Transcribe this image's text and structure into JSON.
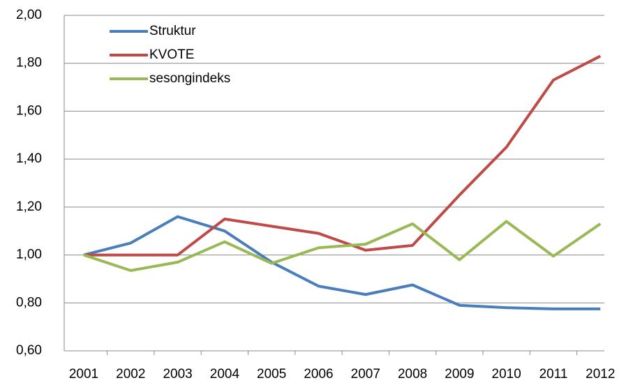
{
  "chart_data": {
    "type": "line",
    "categories": [
      "2001",
      "2002",
      "2003",
      "2004",
      "2005",
      "2006",
      "2007",
      "2008",
      "2009",
      "2010",
      "2011",
      "2012"
    ],
    "series": [
      {
        "name": "Struktur",
        "color": "#4a7ebb",
        "values": [
          1.0,
          1.05,
          1.16,
          1.1,
          0.97,
          0.87,
          0.835,
          0.875,
          0.79,
          0.78,
          0.775,
          0.775
        ]
      },
      {
        "name": "KVOTE",
        "color": "#be4b48",
        "values": [
          1.0,
          1.0,
          1.0,
          1.15,
          1.12,
          1.09,
          1.02,
          1.04,
          1.25,
          1.45,
          1.73,
          1.83
        ]
      },
      {
        "name": "sesongindeks",
        "color": "#98b954",
        "values": [
          1.0,
          0.935,
          0.97,
          1.055,
          0.965,
          1.03,
          1.045,
          1.13,
          0.98,
          1.14,
          0.995,
          1.13
        ]
      }
    ],
    "ylim": [
      0.6,
      2.0
    ],
    "yticks": [
      {
        "value": 0.6,
        "label": "0,60"
      },
      {
        "value": 0.8,
        "label": "0,80"
      },
      {
        "value": 1.0,
        "label": "1,00"
      },
      {
        "value": 1.2,
        "label": "1,20"
      },
      {
        "value": 1.4,
        "label": "1,40"
      },
      {
        "value": 1.6,
        "label": "1,60"
      },
      {
        "value": 1.8,
        "label": "1,80"
      },
      {
        "value": 2.0,
        "label": "2,00"
      }
    ],
    "grid": true,
    "legend": "top-left"
  }
}
